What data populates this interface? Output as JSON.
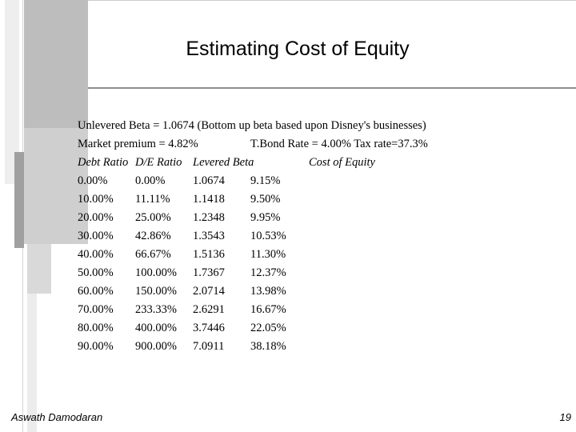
{
  "slide": {
    "title": "Estimating Cost of Equity",
    "beta_line": "Unlevered Beta = 1.0674 (Bottom up beta based upon Disney's businesses)",
    "premium_label": "Market premium = 4.82%",
    "bond_label": "T.Bond Rate = 4.00% Tax rate=37.3%",
    "table": {
      "headers": [
        "Debt Ratio",
        "D/E Ratio",
        "Levered Beta",
        "Cost of Equity"
      ],
      "rows": [
        [
          "0.00%",
          "0.00%",
          "1.0674",
          "9.15%"
        ],
        [
          "10.00%",
          "11.11%",
          "1.1418",
          "9.50%"
        ],
        [
          "20.00%",
          "25.00%",
          "1.2348",
          "9.95%"
        ],
        [
          "30.00%",
          "42.86%",
          "1.3543",
          "10.53%"
        ],
        [
          "40.00%",
          "66.67%",
          "1.5136",
          "11.30%"
        ],
        [
          "50.00%",
          "100.00%",
          "1.7367",
          "12.37%"
        ],
        [
          "60.00%",
          "150.00%",
          "2.0714",
          "13.98%"
        ],
        [
          "70.00%",
          "233.33%",
          "2.6291",
          "16.67%"
        ],
        [
          "80.00%",
          "400.00%",
          "3.7446",
          "22.05%"
        ],
        [
          "90.00%",
          "900.00%",
          "7.0911",
          "38.18%"
        ]
      ]
    },
    "footer_author": "Aswath Damodaran",
    "page_number": "19"
  }
}
